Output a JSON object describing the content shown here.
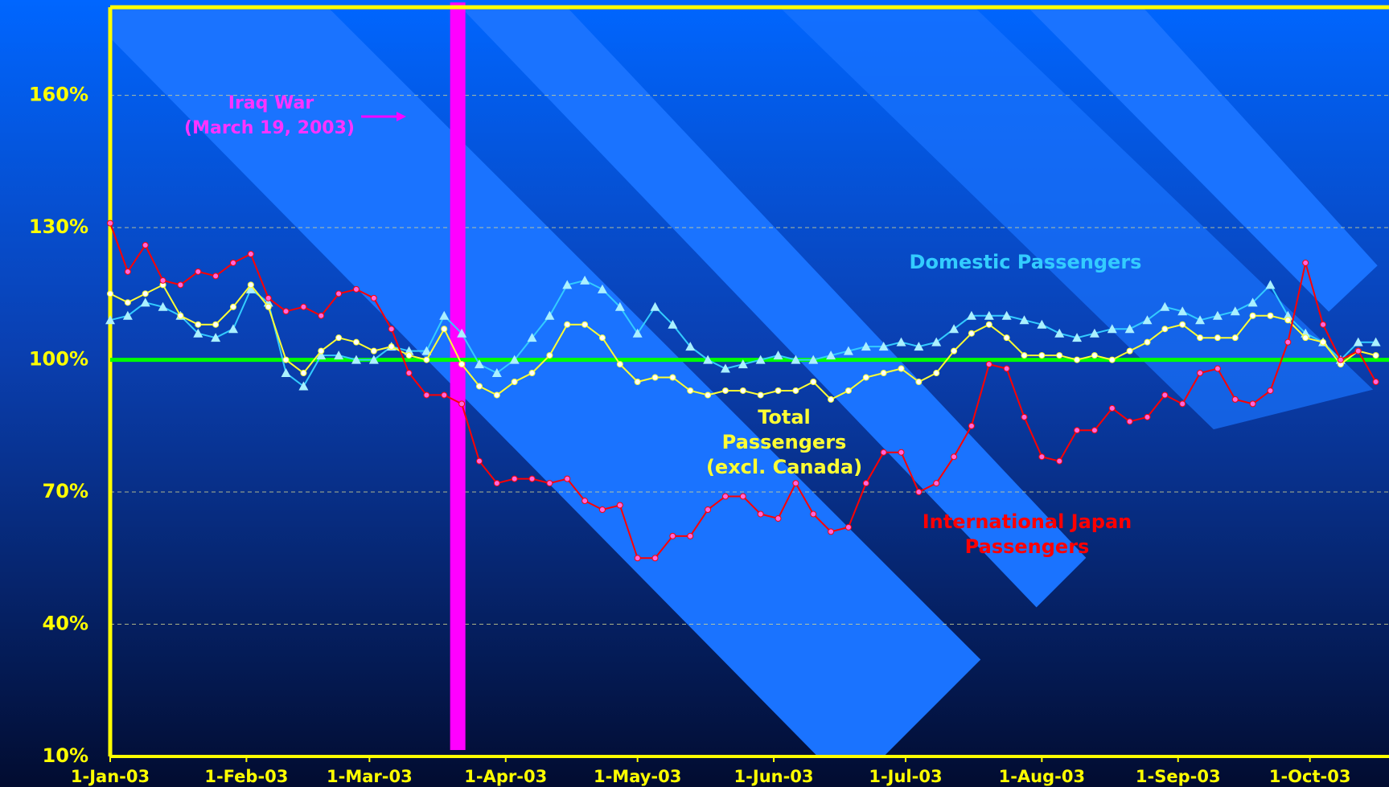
{
  "chart_data": {
    "type": "line",
    "x": [
      "2003-01-01",
      "2003-01-05",
      "2003-01-09",
      "2003-01-13",
      "2003-01-17",
      "2003-01-21",
      "2003-01-25",
      "2003-01-29",
      "2003-02-02",
      "2003-02-06",
      "2003-02-10",
      "2003-02-14",
      "2003-02-18",
      "2003-02-22",
      "2003-02-26",
      "2003-03-02",
      "2003-03-06",
      "2003-03-10",
      "2003-03-14",
      "2003-03-18",
      "2003-03-22",
      "2003-03-26",
      "2003-03-30",
      "2003-04-03",
      "2003-04-07",
      "2003-04-11",
      "2003-04-15",
      "2003-04-19",
      "2003-04-23",
      "2003-04-27",
      "2003-05-01",
      "2003-05-05",
      "2003-05-09",
      "2003-05-13",
      "2003-05-17",
      "2003-05-21",
      "2003-05-25",
      "2003-05-29",
      "2003-06-02",
      "2003-06-06",
      "2003-06-10",
      "2003-06-14",
      "2003-06-18",
      "2003-06-22",
      "2003-06-26",
      "2003-06-30",
      "2003-07-04",
      "2003-07-08",
      "2003-07-12",
      "2003-07-16",
      "2003-07-20",
      "2003-07-24",
      "2003-07-28",
      "2003-08-01",
      "2003-08-05",
      "2003-08-09",
      "2003-08-13",
      "2003-08-17",
      "2003-08-21",
      "2003-08-25",
      "2003-08-29",
      "2003-09-02",
      "2003-09-06",
      "2003-09-10",
      "2003-09-14",
      "2003-09-18",
      "2003-09-22",
      "2003-09-26",
      "2003-09-30",
      "2003-10-04",
      "2003-10-08",
      "2003-10-12",
      "2003-10-16"
    ],
    "series": [
      {
        "name": "Domestic Passengers",
        "color": "#33ccff",
        "marker_color": "#aaf0ff",
        "marker": "triangle",
        "values": [
          109,
          110,
          113,
          112,
          110,
          106,
          105,
          107,
          116,
          113,
          97,
          94,
          101,
          101,
          100,
          100,
          103,
          102,
          102,
          110,
          106,
          99,
          97,
          100,
          105,
          110,
          117,
          118,
          116,
          112,
          106,
          112,
          108,
          103,
          100,
          98,
          99,
          100,
          101,
          100,
          100,
          101,
          102,
          103,
          103,
          104,
          103,
          104,
          107,
          110,
          110,
          110,
          109,
          108,
          106,
          105,
          106,
          107,
          107,
          109,
          112,
          111,
          109,
          110,
          111,
          113,
          117,
          110,
          106,
          104,
          100,
          104,
          104
        ]
      },
      {
        "name": "Total Passengers (excl. Canada)",
        "color": "#ffff33",
        "marker_color": "#ffffff",
        "marker": "circle",
        "values": [
          115,
          113,
          115,
          117,
          110,
          108,
          108,
          112,
          117,
          112,
          100,
          97,
          102,
          105,
          104,
          102,
          103,
          101,
          100,
          107,
          99,
          94,
          92,
          95,
          97,
          101,
          108,
          108,
          105,
          99,
          95,
          96,
          96,
          93,
          92,
          93,
          93,
          92,
          93,
          93,
          95,
          91,
          93,
          96,
          97,
          98,
          95,
          97,
          102,
          106,
          108,
          105,
          101,
          101,
          101,
          100,
          101,
          100,
          102,
          104,
          107,
          108,
          105,
          105,
          105,
          110,
          110,
          109,
          105,
          104,
          99,
          102,
          101
        ]
      },
      {
        "name": "International Japan Passengers",
        "color": "#ff0000",
        "marker_color": "#ff66dd",
        "marker": "circle",
        "values": [
          131,
          120,
          126,
          118,
          117,
          120,
          119,
          122,
          124,
          114,
          111,
          112,
          110,
          115,
          116,
          114,
          107,
          97,
          92,
          92,
          90,
          77,
          72,
          73,
          73,
          72,
          73,
          68,
          66,
          67,
          55,
          55,
          60,
          60,
          66,
          69,
          69,
          65,
          64,
          72,
          65,
          61,
          62,
          72,
          79,
          79,
          70,
          72,
          78,
          85,
          99,
          98,
          87,
          78,
          77,
          84,
          84,
          89,
          86,
          87,
          92,
          90,
          97,
          98,
          91,
          90,
          93,
          104,
          122,
          108,
          100,
          102,
          95
        ]
      }
    ],
    "xlim": [
      "2003-01-01",
      "2003-10-19"
    ],
    "xticks": [
      {
        "value": "2003-01-01",
        "label": "1-Jan-03"
      },
      {
        "value": "2003-02-01",
        "label": "1-Feb-03"
      },
      {
        "value": "2003-03-01",
        "label": "1-Mar-03"
      },
      {
        "value": "2003-04-01",
        "label": "1-Apr-03"
      },
      {
        "value": "2003-05-01",
        "label": "1-May-03"
      },
      {
        "value": "2003-06-01",
        "label": "1-Jun-03"
      },
      {
        "value": "2003-07-01",
        "label": "1-Jul-03"
      },
      {
        "value": "2003-08-01",
        "label": "1-Aug-03"
      },
      {
        "value": "2003-09-01",
        "label": "1-Sep-03"
      },
      {
        "value": "2003-10-01",
        "label": "1-Oct-03"
      }
    ],
    "ylim": [
      10,
      180
    ],
    "yticks": [
      {
        "value": 10,
        "label": "10%"
      },
      {
        "value": 40,
        "label": "40%"
      },
      {
        "value": 70,
        "label": "70%"
      },
      {
        "value": 100,
        "label": "100%"
      },
      {
        "value": 130,
        "label": "130%"
      },
      {
        "value": 160,
        "label": "160%"
      }
    ],
    "grid": true,
    "reference_line": {
      "value": 100,
      "color": "#00ff00"
    },
    "event": {
      "x": "2003-03-21",
      "color": "#ff00ff",
      "label": [
        "Iraq War",
        "(March 19, 2003)"
      ]
    }
  }
}
